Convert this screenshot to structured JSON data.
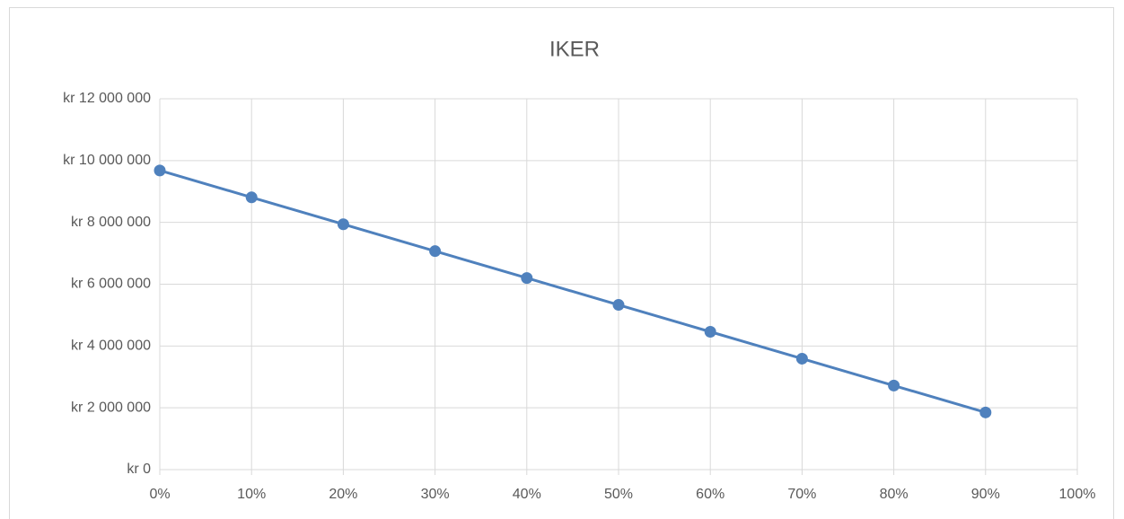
{
  "chart_data": {
    "type": "line",
    "title": "IKER",
    "x": [
      0,
      10,
      20,
      30,
      40,
      50,
      60,
      70,
      80,
      90
    ],
    "values": [
      9680000,
      8810000,
      7940000,
      7070000,
      6200000,
      5330000,
      4460000,
      3590000,
      2720000,
      1850000
    ],
    "color": "#4f81bd",
    "xlim": [
      0,
      100
    ],
    "xticks": [
      {
        "value": 0,
        "label": "0%"
      },
      {
        "value": 10,
        "label": "10%"
      },
      {
        "value": 20,
        "label": "20%"
      },
      {
        "value": 30,
        "label": "30%"
      },
      {
        "value": 40,
        "label": "40%"
      },
      {
        "value": 50,
        "label": "50%"
      },
      {
        "value": 60,
        "label": "60%"
      },
      {
        "value": 70,
        "label": "70%"
      },
      {
        "value": 80,
        "label": "80%"
      },
      {
        "value": 90,
        "label": "90%"
      },
      {
        "value": 100,
        "label": "100%"
      }
    ],
    "ylim": [
      0,
      12000000
    ],
    "yticks": [
      {
        "value": 0,
        "label": "kr 0"
      },
      {
        "value": 2000000,
        "label": "kr 2 000 000"
      },
      {
        "value": 4000000,
        "label": "kr 4 000 000"
      },
      {
        "value": 6000000,
        "label": "kr 6 000 000"
      },
      {
        "value": 8000000,
        "label": "kr 8 000 000"
      },
      {
        "value": 10000000,
        "label": "kr 10 000 000"
      },
      {
        "value": 12000000,
        "label": "kr 12 000 000"
      }
    ],
    "grid": true
  }
}
